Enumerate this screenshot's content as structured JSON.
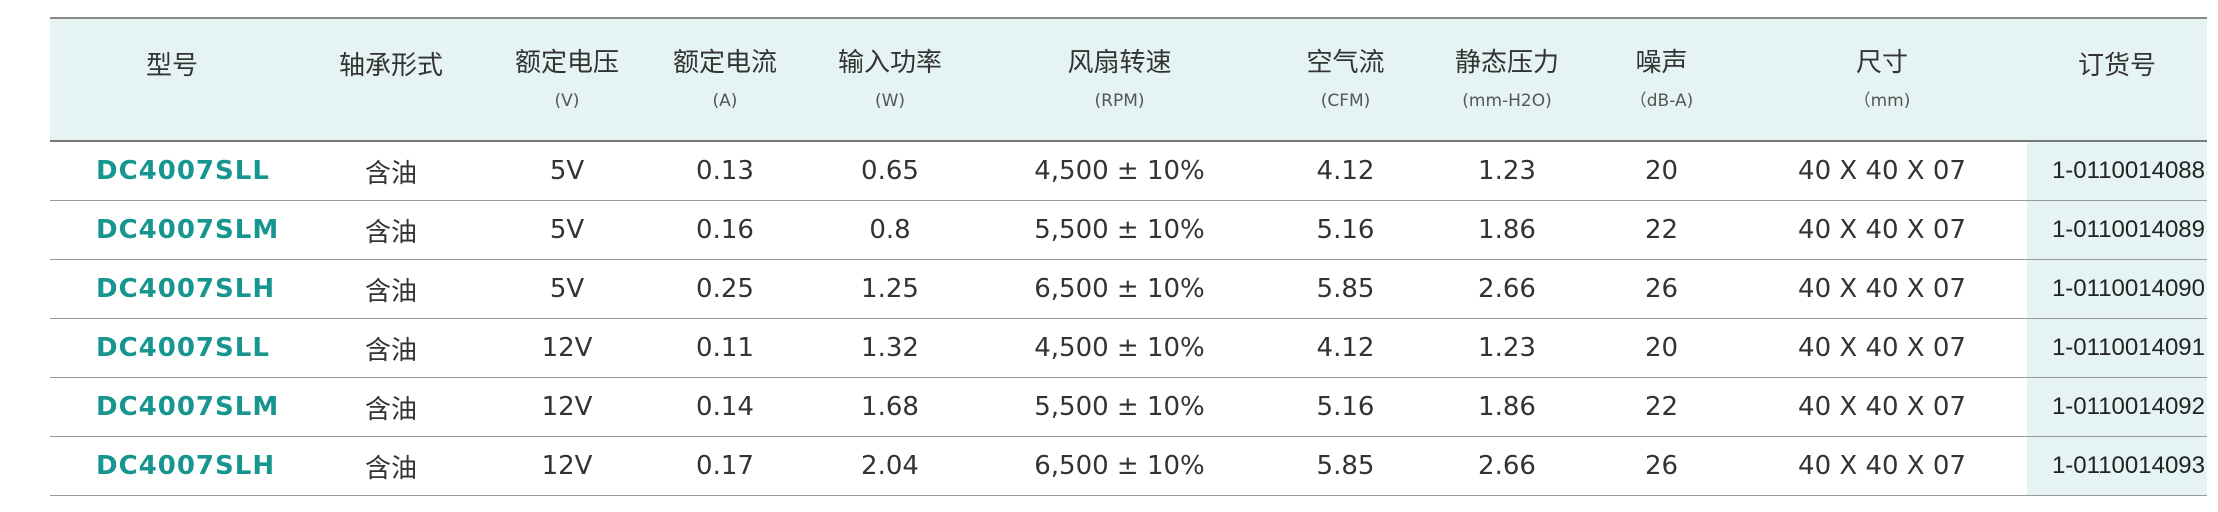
{
  "table": {
    "header": [
      {
        "label": "型号"
      },
      {
        "label": "轴承形式"
      },
      {
        "label": "额定电压",
        "unit": "(V)"
      },
      {
        "label": "额定电流",
        "unit": "(A)"
      },
      {
        "label": "输入功率",
        "unit": "(W)"
      },
      {
        "label": "风扇转速",
        "unit": "(RPM)"
      },
      {
        "label": "空气流",
        "unit": "(CFM)"
      },
      {
        "label": "静态压力",
        "unit": "(mm-H2O)"
      },
      {
        "label": "噪声",
        "unit": "（dB-A)"
      },
      {
        "label": "尺寸",
        "unit": "（mm)"
      },
      {
        "label": "订货号"
      }
    ],
    "rows": [
      [
        "DC4007SLL",
        "含油",
        "5V",
        "0.13",
        "0.65",
        "4,500 ± 10%",
        "4.12",
        "1.23",
        "20",
        "40 X 40 X 07",
        "1-0110014088"
      ],
      [
        "DC4007SLM",
        "含油",
        "5V",
        "0.16",
        "0.8",
        "5,500 ± 10%",
        "5.16",
        "1.86",
        "22",
        "40 X 40 X 07",
        "1-0110014089"
      ],
      [
        "DC4007SLH",
        "含油",
        "5V",
        "0.25",
        "1.25",
        "6,500 ± 10%",
        "5.85",
        "2.66",
        "26",
        "40 X 40 X 07",
        "1-0110014090"
      ],
      [
        "DC4007SLL",
        "含油",
        "12V",
        "0.11",
        "1.32",
        "4,500 ± 10%",
        "4.12",
        "1.23",
        "20",
        "40 X 40 X 07",
        "1-0110014091"
      ],
      [
        "DC4007SLM",
        "含油",
        "12V",
        "0.14",
        "1.68",
        "5,500 ± 10%",
        "5.16",
        "1.86",
        "22",
        "40 X 40 X 07",
        "1-0110014092"
      ],
      [
        "DC4007SLH",
        "含油",
        "12V",
        "0.17",
        "2.04",
        "6,500 ± 10%",
        "5.85",
        "2.66",
        "26",
        "40 X 40 X 07",
        "1-0110014093"
      ]
    ]
  }
}
